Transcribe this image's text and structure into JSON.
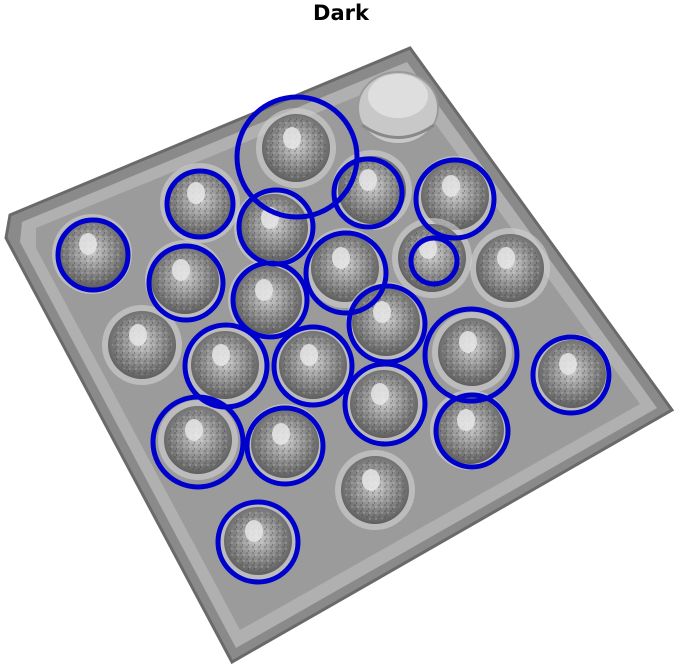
{
  "title": "Dark",
  "overlay": {
    "circle_color": "#0000cc",
    "circle_count": 21
  },
  "colors": {
    "tray_outer": "#8a8a8a",
    "tray_rim": "#b5b5b5",
    "tray_inner": "#9d9d9d",
    "well_fill": "#aaaaaa",
    "well_rim": "#d2d2d2"
  }
}
